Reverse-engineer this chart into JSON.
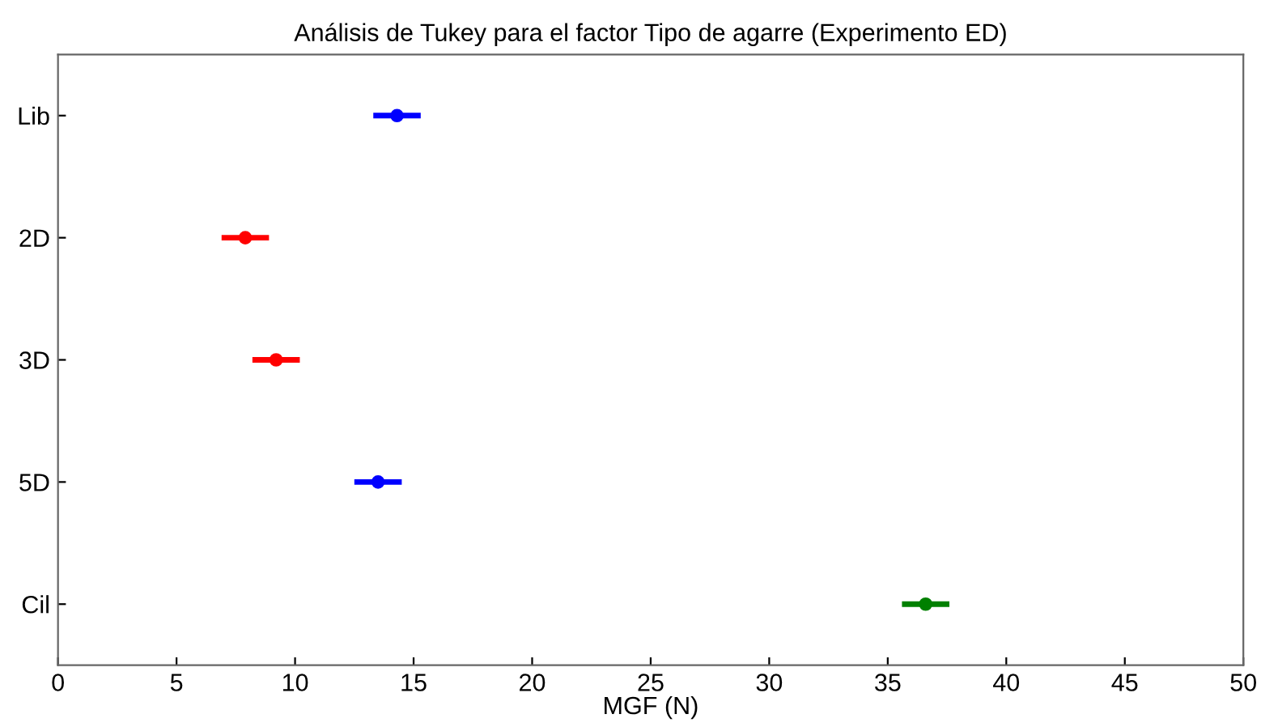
{
  "chart_data": {
    "type": "scatter",
    "orientation": "horizontal",
    "title": "Análisis de Tukey para el factor Tipo de agarre (Experimento ED)",
    "xlabel": "MGF (N)",
    "categories": [
      "Lib",
      "2D",
      "3D",
      "5D",
      "Cil"
    ],
    "values": [
      14.3,
      7.9,
      9.2,
      13.5,
      36.6
    ],
    "errors": [
      1.0,
      1.0,
      1.0,
      1.0,
      1.0
    ],
    "colors": [
      "#0000ff",
      "#ff0000",
      "#ff0000",
      "#0000ff",
      "#008000"
    ],
    "marker": "circle",
    "xlim": [
      0,
      50
    ],
    "xticks": [
      0,
      5,
      10,
      15,
      20,
      25,
      30,
      35,
      40,
      45,
      50
    ],
    "grid": false,
    "legend": false
  }
}
